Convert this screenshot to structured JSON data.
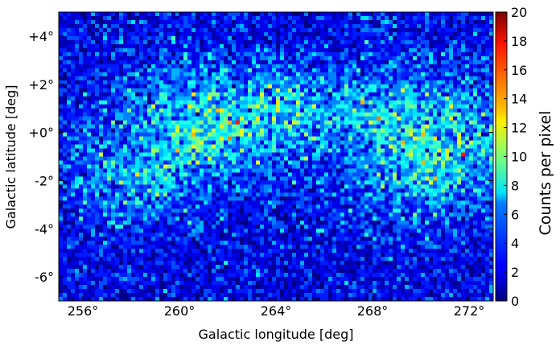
{
  "chart_data": {
    "type": "heatmap",
    "title": "",
    "xlabel": "Galactic longitude [deg]",
    "ylabel": "Galactic latitude [deg]",
    "x_range": [
      255,
      273
    ],
    "y_range": [
      -7,
      5
    ],
    "x_reversed": false,
    "x_ticks": [
      {
        "value": 256,
        "label": "256°"
      },
      {
        "value": 260,
        "label": "260°"
      },
      {
        "value": 264,
        "label": "264°"
      },
      {
        "value": 268,
        "label": "268°"
      },
      {
        "value": 272,
        "label": "272°"
      }
    ],
    "y_ticks": [
      {
        "value": 4,
        "label": "+4°"
      },
      {
        "value": 2,
        "label": "+2°"
      },
      {
        "value": 0,
        "label": "+0°"
      },
      {
        "value": -2,
        "label": "-2°"
      },
      {
        "value": -4,
        "label": "-4°"
      },
      {
        "value": -6,
        "label": "-6°"
      }
    ],
    "grid": false,
    "colormap": "jet",
    "colorbar": {
      "label": "Counts per pixel",
      "range": [
        0,
        20
      ],
      "ticks": [
        {
          "value": 0,
          "label": "0"
        },
        {
          "value": 2,
          "label": "2"
        },
        {
          "value": 4,
          "label": "4"
        },
        {
          "value": 6,
          "label": "6"
        },
        {
          "value": 8,
          "label": "8"
        },
        {
          "value": 10,
          "label": "10"
        },
        {
          "value": 12,
          "label": "12"
        },
        {
          "value": 14,
          "label": "14"
        },
        {
          "value": 16,
          "label": "16"
        },
        {
          "value": 18,
          "label": "18"
        },
        {
          "value": 20,
          "label": "20"
        }
      ]
    },
    "grid_dims": {
      "nx": 108,
      "ny": 72
    },
    "value_model": {
      "background_counts": 2.2,
      "plane_components": [
        {
          "l_center": 261.2,
          "b_center": 0.2,
          "l_width": 2.2,
          "b_width": 1.6,
          "amplitude": 4.0
        },
        {
          "l_center": 258.0,
          "b_center": -2.2,
          "l_width": 1.6,
          "b_width": 1.3,
          "amplitude": 2.6
        },
        {
          "l_center": 265.5,
          "b_center": 1.0,
          "l_width": 2.4,
          "b_width": 1.0,
          "amplitude": 3.0
        },
        {
          "l_center": 270.6,
          "b_center": -0.6,
          "l_width": 2.1,
          "b_width": 1.9,
          "amplitude": 4.8
        },
        {
          "l_center": 264.0,
          "b_center": 0.0,
          "l_width": 8.0,
          "b_width": 2.2,
          "amplitude": 1.2
        }
      ]
    }
  }
}
